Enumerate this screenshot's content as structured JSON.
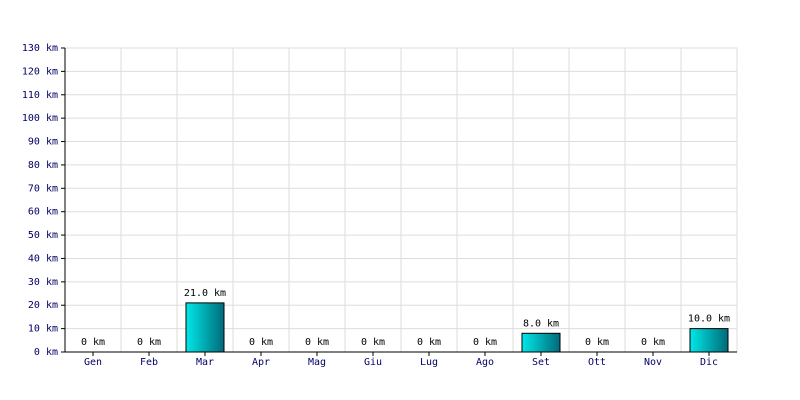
{
  "chart_data": {
    "type": "bar",
    "categories": [
      "Gen",
      "Feb",
      "Mar",
      "Apr",
      "Mag",
      "Giu",
      "Lug",
      "Ago",
      "Set",
      "Ott",
      "Nov",
      "Dic"
    ],
    "values": [
      0,
      0,
      21,
      0,
      0,
      0,
      0,
      0,
      8,
      0,
      0,
      10
    ],
    "value_labels": [
      "0 km",
      "0 km",
      "21.0 km",
      "0 km",
      "0 km",
      "0 km",
      "0 km",
      "0 km",
      "8.0 km",
      "0 km",
      "0 km",
      "10.0 km"
    ],
    "color": "#00c8c8",
    "ylim": [
      0,
      130
    ],
    "yticks": [
      {
        "value": 0,
        "label": "0 km"
      },
      {
        "value": 10,
        "label": "10 km"
      },
      {
        "value": 20,
        "label": "20 km"
      },
      {
        "value": 30,
        "label": "30 km"
      },
      {
        "value": 40,
        "label": "40 km"
      },
      {
        "value": 50,
        "label": "50 km"
      },
      {
        "value": 60,
        "label": "60 km"
      },
      {
        "value": 70,
        "label": "70 km"
      },
      {
        "value": 80,
        "label": "80 km"
      },
      {
        "value": 90,
        "label": "90 km"
      },
      {
        "value": 100,
        "label": "100 km"
      },
      {
        "value": 110,
        "label": "110 km"
      },
      {
        "value": 120,
        "label": "120 km"
      },
      {
        "value": 130,
        "label": "130 km"
      }
    ],
    "grid": true
  }
}
